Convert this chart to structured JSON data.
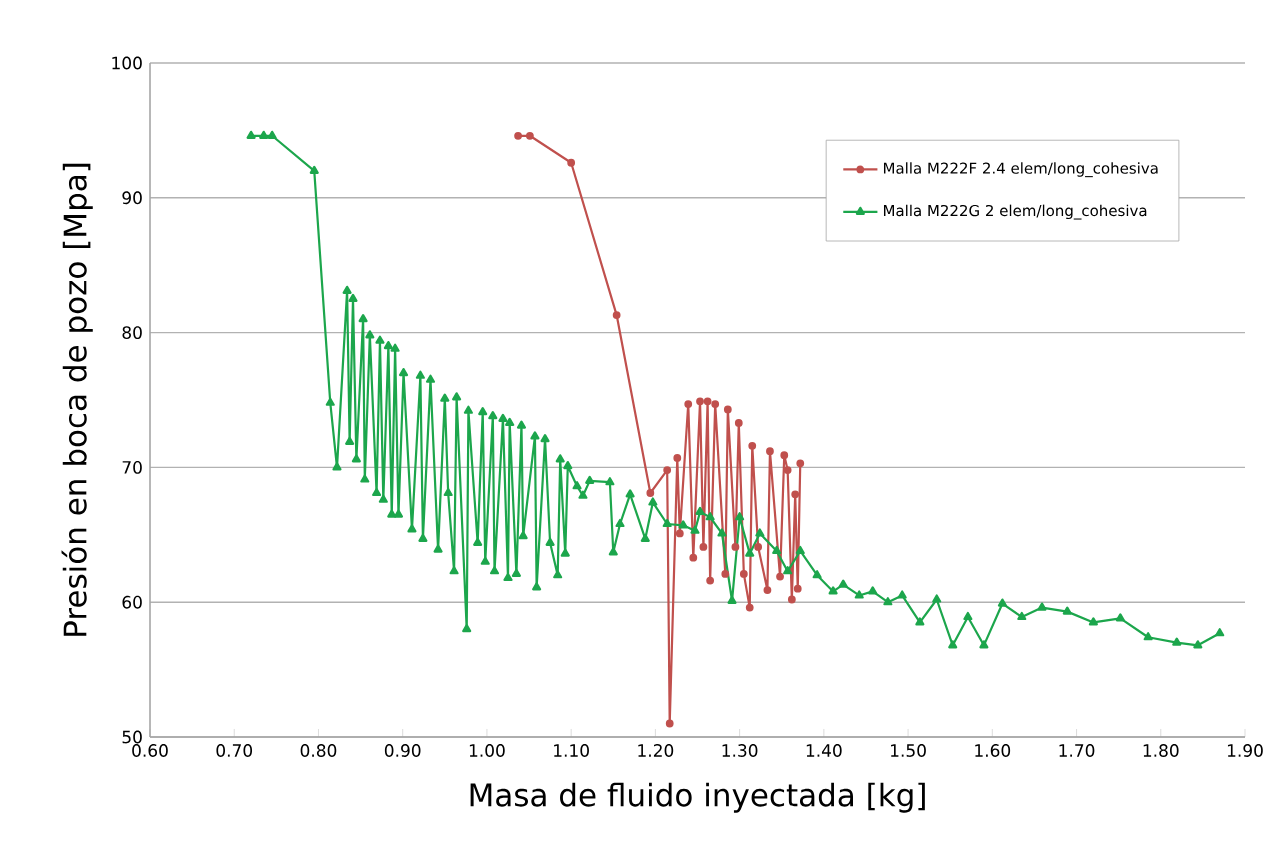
{
  "chart_data": {
    "type": "line",
    "xlabel": "Masa de fluido inyectada [kg]",
    "ylabel": "Presión en boca de pozo [Mpa]",
    "xlim": [
      0.6,
      1.9
    ],
    "ylim": [
      50,
      100
    ],
    "xticks": [
      {
        "value": 0.6,
        "label": "0.60"
      },
      {
        "value": 0.7,
        "label": "0.70"
      },
      {
        "value": 0.8,
        "label": "0.80"
      },
      {
        "value": 0.9,
        "label": "0.90"
      },
      {
        "value": 1.0,
        "label": "1.00"
      },
      {
        "value": 1.1,
        "label": "1.10"
      },
      {
        "value": 1.2,
        "label": "1.20"
      },
      {
        "value": 1.3,
        "label": "1.30"
      },
      {
        "value": 1.4,
        "label": "1.40"
      },
      {
        "value": 1.5,
        "label": "1.50"
      },
      {
        "value": 1.6,
        "label": "1.60"
      },
      {
        "value": 1.7,
        "label": "1.70"
      },
      {
        "value": 1.8,
        "label": "1.80"
      },
      {
        "value": 1.9,
        "label": "1.90"
      }
    ],
    "yticks": [
      50,
      60,
      70,
      80,
      90,
      100
    ],
    "grid": "y",
    "legend": "top right",
    "line_style": "solid",
    "series": [
      {
        "name": "Malla M222F 2.4 elem/long_cohesiva",
        "color": "#c0504d",
        "marker": "circle",
        "x": [
          1.037,
          1.051,
          1.1,
          1.154,
          1.194,
          1.214,
          1.217,
          1.226,
          1.229,
          1.239,
          1.245,
          1.253,
          1.257,
          1.262,
          1.265,
          1.271,
          1.283,
          1.286,
          1.295,
          1.299,
          1.305,
          1.312,
          1.315,
          1.322,
          1.333,
          1.336,
          1.348,
          1.353,
          1.357,
          1.362,
          1.366,
          1.369,
          1.372
        ],
        "values": [
          94.6,
          94.6,
          92.6,
          81.3,
          68.1,
          69.8,
          51.0,
          70.7,
          65.1,
          74.7,
          63.3,
          74.9,
          64.1,
          74.9,
          61.6,
          74.7,
          62.1,
          74.3,
          64.1,
          73.3,
          62.1,
          59.6,
          71.6,
          64.1,
          60.9,
          71.2,
          61.9,
          70.9,
          69.8,
          60.2,
          68.0,
          61.0,
          70.3
        ]
      },
      {
        "name": "Malla M222G 2 elem/long_cohesiva",
        "color": "#1ca64c",
        "marker": "triangle",
        "x": [
          0.72,
          0.735,
          0.745,
          0.795,
          0.814,
          0.822,
          0.834,
          0.837,
          0.841,
          0.845,
          0.853,
          0.855,
          0.861,
          0.869,
          0.873,
          0.877,
          0.883,
          0.887,
          0.891,
          0.895,
          0.901,
          0.911,
          0.921,
          0.924,
          0.933,
          0.942,
          0.95,
          0.954,
          0.961,
          0.964,
          0.976,
          0.978,
          0.989,
          0.995,
          0.998,
          1.007,
          1.009,
          1.019,
          1.025,
          1.027,
          1.035,
          1.041,
          1.043,
          1.057,
          1.059,
          1.069,
          1.075,
          1.084,
          1.087,
          1.093,
          1.096,
          1.107,
          1.114,
          1.122,
          1.146,
          1.15,
          1.158,
          1.17,
          1.188,
          1.197,
          1.214,
          1.233,
          1.247,
          1.253,
          1.265,
          1.279,
          1.291,
          1.3,
          1.312,
          1.324,
          1.344,
          1.357,
          1.372,
          1.392,
          1.411,
          1.423,
          1.442,
          1.458,
          1.476,
          1.493,
          1.514,
          1.534,
          1.553,
          1.571,
          1.59,
          1.612,
          1.635,
          1.659,
          1.689,
          1.72,
          1.752,
          1.785,
          1.819,
          1.844,
          1.87
        ],
        "values": [
          94.6,
          94.6,
          94.6,
          92.0,
          74.8,
          70.0,
          83.1,
          71.9,
          82.5,
          70.6,
          81.0,
          69.1,
          79.8,
          68.1,
          79.4,
          67.6,
          79.0,
          66.5,
          78.8,
          66.5,
          77.0,
          65.4,
          76.8,
          64.7,
          76.5,
          63.9,
          75.1,
          68.1,
          62.3,
          75.2,
          58.0,
          74.2,
          64.4,
          74.1,
          63.0,
          73.8,
          62.3,
          73.6,
          61.8,
          73.3,
          62.1,
          73.1,
          64.9,
          72.3,
          61.1,
          72.1,
          64.4,
          62.0,
          70.6,
          63.6,
          70.1,
          68.6,
          67.9,
          69.0,
          68.9,
          63.7,
          65.8,
          68.0,
          64.7,
          67.4,
          65.8,
          65.7,
          65.3,
          66.7,
          66.3,
          65.1,
          60.1,
          66.3,
          63.6,
          65.1,
          63.8,
          62.3,
          63.8,
          62.0,
          60.8,
          61.3,
          60.5,
          60.8,
          60.0,
          60.5,
          58.5,
          60.2,
          56.8,
          58.9,
          56.8,
          59.9,
          58.9,
          59.6,
          59.3,
          58.5,
          58.8,
          57.4,
          57.0,
          56.8,
          57.7
        ]
      }
    ]
  }
}
